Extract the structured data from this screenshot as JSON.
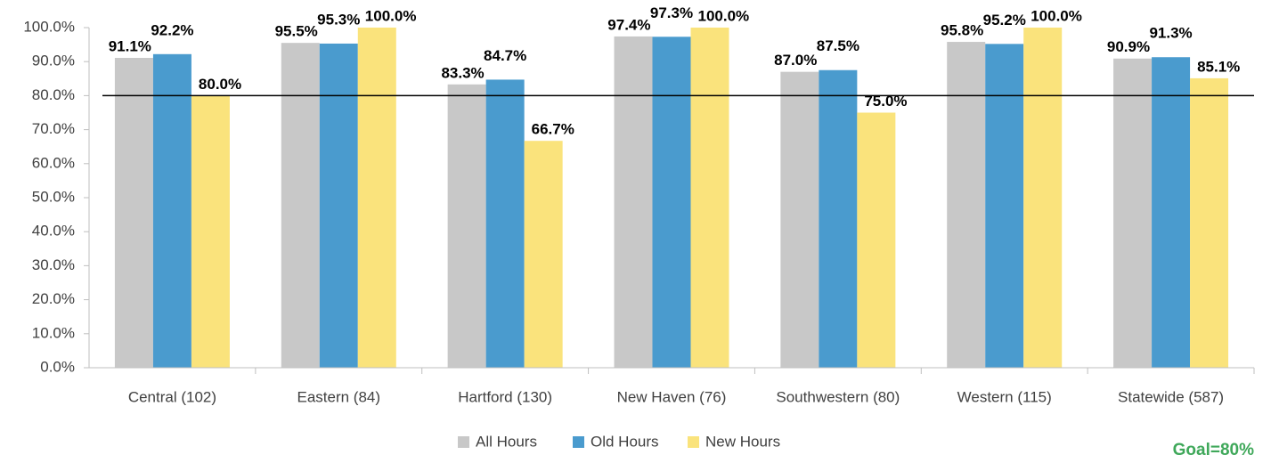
{
  "chart_data": {
    "type": "bar",
    "categories": [
      "Central (102)",
      "Eastern (84)",
      "Hartford (130)",
      "New Haven (76)",
      "Southwestern (80)",
      "Western (115)",
      "Statewide (587)"
    ],
    "series": [
      {
        "name": "All Hours",
        "color": "#c8c8c8",
        "values": [
          91.1,
          95.5,
          83.3,
          97.4,
          87.0,
          95.8,
          90.9
        ],
        "value_labels": [
          "91.1%",
          "95.5%",
          "83.3%",
          "97.4%",
          "87.0%",
          "95.8%",
          "90.9%"
        ]
      },
      {
        "name": "Old Hours",
        "color": "#4a9bce",
        "values": [
          92.2,
          95.3,
          84.7,
          97.3,
          87.5,
          95.2,
          91.3
        ],
        "value_labels": [
          "92.2%",
          "95.3%",
          "84.7%",
          "97.3%",
          "87.5%",
          "95.2%",
          "91.3%"
        ]
      },
      {
        "name": "New Hours",
        "color": "#fae37c",
        "values": [
          80.0,
          100.0,
          66.7,
          100.0,
          75.0,
          100.0,
          85.1
        ],
        "value_labels": [
          "80.0%",
          "100.0%",
          "66.7%",
          "100.0%",
          "75.0%",
          "100.0%",
          "85.1%"
        ]
      }
    ],
    "ylim": [
      0,
      100
    ],
    "yticks": [
      {
        "value": 0,
        "label": "0.0%"
      },
      {
        "value": 10,
        "label": "10.0%"
      },
      {
        "value": 20,
        "label": "20.0%"
      },
      {
        "value": 30,
        "label": "30.0%"
      },
      {
        "value": 40,
        "label": "40.0%"
      },
      {
        "value": 50,
        "label": "50.0%"
      },
      {
        "value": 60,
        "label": "60.0%"
      },
      {
        "value": 70,
        "label": "70.0%"
      },
      {
        "value": 80,
        "label": "80.0%"
      },
      {
        "value": 90,
        "label": "90.0%"
      },
      {
        "value": 100,
        "label": "100.0%"
      }
    ],
    "goal_line": 80,
    "annotation": "Goal=80%",
    "legend": "bottom"
  }
}
